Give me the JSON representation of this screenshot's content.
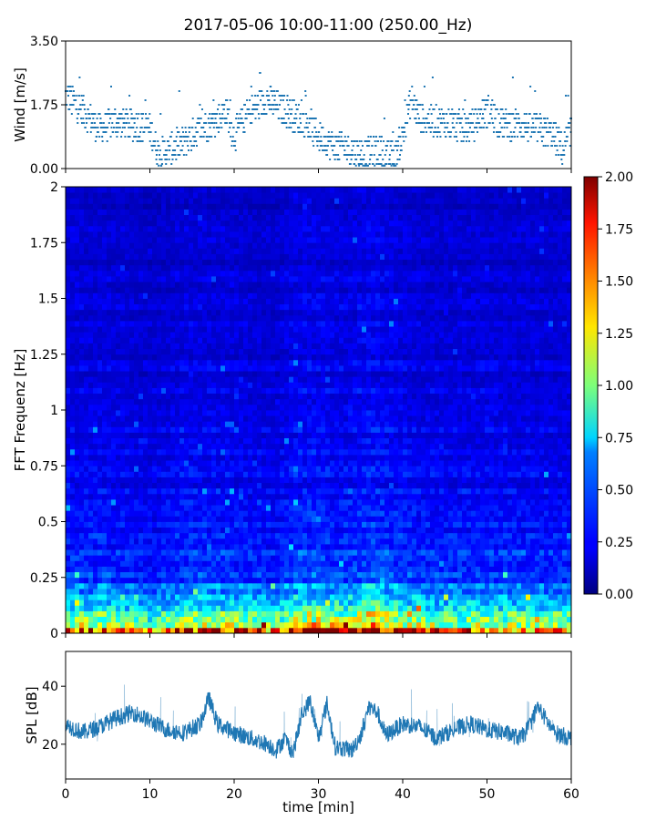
{
  "figure": {
    "title": "2017-05-06 10:00-11:00 (250.00_Hz)"
  },
  "chart_data": [
    {
      "type": "scatter",
      "panel": "wind",
      "ylabel": "Wind [m/s]",
      "xlim": [
        0,
        60
      ],
      "ylim": [
        0,
        3.5
      ],
      "yticks": [
        "0.00",
        "1.75",
        "3.50"
      ],
      "grid": false,
      "color": "#1f77b4",
      "series": [
        {
          "x": [
            0,
            2,
            4,
            6,
            8,
            10,
            11,
            12,
            14,
            16,
            18,
            19,
            20,
            21,
            22,
            24,
            26,
            28,
            30,
            32,
            33,
            34,
            35,
            36,
            37,
            38,
            39,
            40,
            41,
            42,
            44,
            46,
            48,
            50,
            52,
            54,
            56,
            58,
            59,
            60
          ],
          "y": [
            2.0,
            1.6,
            1.1,
            1.3,
            1.2,
            1.1,
            0.4,
            0.5,
            0.7,
            1.1,
            1.3,
            1.6,
            0.9,
            1.3,
            1.6,
            1.9,
            1.6,
            1.3,
            0.9,
            0.6,
            0.6,
            0.5,
            0.4,
            0.4,
            0.5,
            0.4,
            0.3,
            0.9,
            1.9,
            1.4,
            1.3,
            1.2,
            1.1,
            1.6,
            1.2,
            1.2,
            1.1,
            0.9,
            0.5,
            1.1
          ]
        }
      ]
    },
    {
      "type": "heatmap",
      "panel": "spectrogram",
      "ylabel": "FFT Frequenz [Hz]",
      "xlim": [
        0,
        60
      ],
      "ylim": [
        0,
        2
      ],
      "yticks": [
        "0",
        "0.25",
        "0.5",
        "0.75",
        "1",
        "1.25",
        "1.5",
        "1.75",
        "2"
      ],
      "colormap": "jet",
      "colorbar": {
        "range": [
          0,
          2
        ],
        "ticks": [
          "0.00",
          "0.25",
          "0.50",
          "0.75",
          "1.00",
          "1.25",
          "1.50",
          "1.75",
          "2.00"
        ]
      },
      "series": [
        {
          "frequency_profile": {
            "frequency": [
              0,
              0.02,
              0.05,
              0.1,
              0.15,
              0.25,
              0.35,
              0.5,
              0.75,
              1.0,
              1.5,
              2.0
            ],
            "typical_value": [
              1.9,
              1.3,
              0.95,
              0.7,
              0.55,
              0.4,
              0.32,
              0.27,
              0.22,
              0.2,
              0.17,
              0.15
            ]
          },
          "time_profile": {
            "time": [
              0,
              5,
              10,
              15,
              20,
              25,
              27,
              30,
              33,
              36,
              40,
              45,
              50,
              55,
              60
            ],
            "relative_intensity": [
              1.0,
              1.0,
              0.85,
              1.05,
              1.0,
              0.9,
              1.15,
              1.15,
              1.05,
              1.25,
              1.05,
              0.95,
              1.0,
              0.95,
              0.95
            ]
          }
        }
      ]
    },
    {
      "type": "line",
      "panel": "spl",
      "xlabel": "time [min]",
      "ylabel": "SPL [dB]",
      "xlim": [
        0,
        60
      ],
      "ylim": [
        8,
        52
      ],
      "xticks": [
        "0",
        "10",
        "20",
        "30",
        "40",
        "50",
        "60"
      ],
      "yticks": [
        "20",
        "40"
      ],
      "grid": false,
      "color": "#1f77b4",
      "series": [
        {
          "x": [
            0,
            2,
            4,
            6,
            8,
            10,
            12,
            14,
            16,
            17,
            18,
            20,
            22,
            24,
            25,
            26,
            27,
            28,
            29,
            30,
            31,
            32,
            34,
            35,
            36,
            37,
            38,
            40,
            42,
            44,
            46,
            48,
            50,
            52,
            54,
            55,
            56,
            58,
            60
          ],
          "y": [
            27,
            24,
            26,
            29,
            31,
            28,
            25,
            24,
            27,
            36,
            27,
            24,
            22,
            20,
            18,
            22,
            17,
            30,
            35,
            22,
            34,
            19,
            18,
            23,
            33,
            31,
            23,
            27,
            26,
            22,
            25,
            27,
            25,
            24,
            22,
            26,
            33,
            24,
            22
          ]
        }
      ]
    }
  ]
}
